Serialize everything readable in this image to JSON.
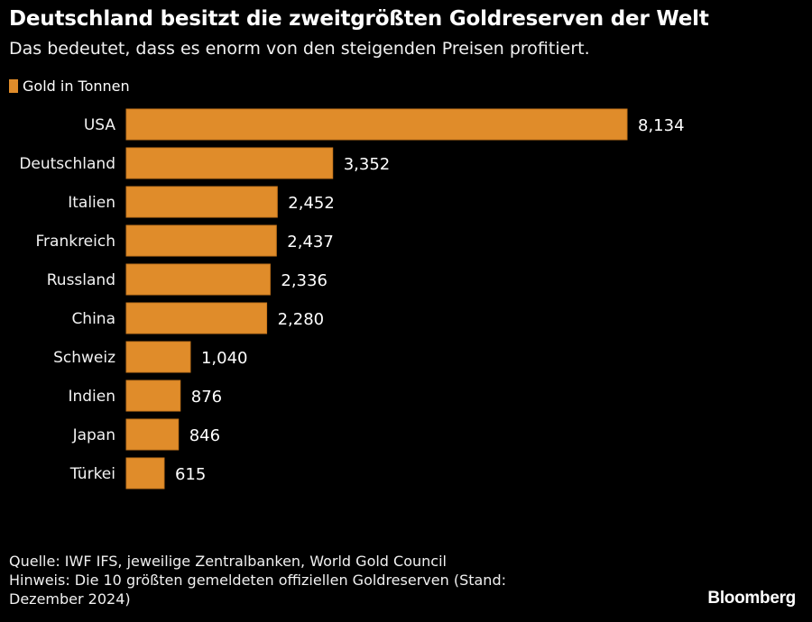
{
  "header": {
    "title": "Deutschland besitzt die zweitgrößten Goldreserven der Welt",
    "subtitle": "Das bedeutet, dass es enorm von den steigenden Preisen profitiert."
  },
  "legend": {
    "label": "Gold in Tonnen",
    "color": "#e08c2a"
  },
  "chart_data": {
    "type": "bar",
    "orientation": "horizontal",
    "title": "Deutschland besitzt die zweitgrößten Goldreserven der Welt",
    "subtitle": "Das bedeutet, dass es enorm von den steigenden Preisen profitiert.",
    "xlabel": "",
    "ylabel": "",
    "legend": [
      "Gold in Tonnen"
    ],
    "legend_position": "top-left",
    "grid": false,
    "xlim": [
      0,
      8134
    ],
    "categories": [
      "USA",
      "Deutschland",
      "Italien",
      "Frankreich",
      "Russland",
      "China",
      "Schweiz",
      "Indien",
      "Japan",
      "Türkei"
    ],
    "series": [
      {
        "name": "Gold in Tonnen",
        "color": "#e08c2a",
        "values": [
          8134,
          3352,
          2452,
          2437,
          2336,
          2280,
          1040,
          876,
          846,
          615
        ],
        "labels": [
          "8,134",
          "3,352",
          "2,452",
          "2,437",
          "2,336",
          "2,280",
          "1,040",
          "876",
          "846",
          "615"
        ]
      }
    ]
  },
  "footer": {
    "source": "Quelle: IWF IFS, jeweilige Zentralbanken, World Gold Council",
    "note_line1": "Hinweis: Die 10 größten gemeldeten offiziellen Goldreserven (Stand:",
    "note_line2": "Dezember 2024)",
    "brand": "Bloomberg"
  }
}
